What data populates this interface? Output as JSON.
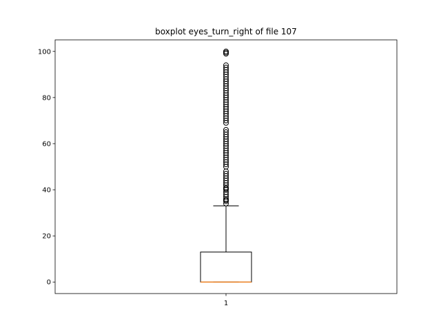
{
  "chart_data": {
    "type": "boxplot",
    "title": "boxplot eyes_turn_right of file 107",
    "xlabel": "",
    "ylabel": "",
    "categories": [
      "1"
    ],
    "ylim": [
      -5,
      105
    ],
    "yticks": [
      0,
      20,
      40,
      60,
      80,
      100
    ],
    "grid": false,
    "boxes": [
      {
        "category": "1",
        "whisker_low": 0,
        "q1": 0,
        "median": 0,
        "q3": 13,
        "whisker_high": 33,
        "outliers": [
          34,
          35,
          35.5,
          36,
          37,
          38,
          39,
          40,
          40.5,
          41,
          42,
          43,
          44,
          45,
          46,
          47,
          48,
          50,
          51,
          52,
          53,
          54,
          55,
          56,
          57,
          58,
          59,
          60,
          61,
          62,
          63,
          64,
          65,
          66,
          69,
          70,
          71,
          72,
          73,
          74,
          75,
          76,
          77,
          78,
          79,
          80,
          81,
          82,
          83,
          84,
          85,
          86,
          87,
          88,
          89,
          90,
          91,
          92,
          93,
          94,
          99,
          99.5,
          100
        ]
      }
    ],
    "colors": {
      "box": "#000000",
      "median": "#ff7f0e",
      "outlier": "#000000"
    }
  }
}
